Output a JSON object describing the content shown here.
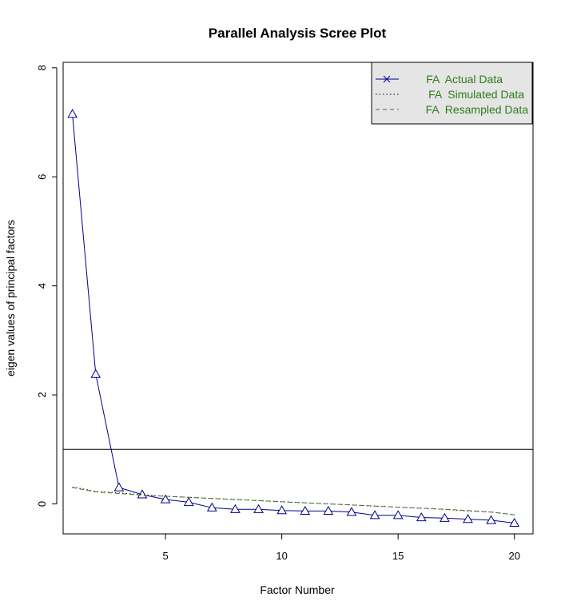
{
  "chart_data": {
    "type": "line",
    "title": "Parallel Analysis Scree Plot",
    "xlabel": "Factor Number",
    "ylabel": "eigen values of principal factors",
    "xlim": [
      0.6,
      20.8
    ],
    "ylim": [
      -0.55,
      8.1
    ],
    "x_ticks": [
      5,
      10,
      15,
      20
    ],
    "y_ticks": [
      0,
      2,
      4,
      6,
      8
    ],
    "reference_line_y": 1,
    "legend_position": "top-right",
    "x": [
      1,
      2,
      3,
      4,
      5,
      6,
      7,
      8,
      9,
      10,
      11,
      12,
      13,
      14,
      15,
      16,
      17,
      18,
      19,
      20
    ],
    "series": [
      {
        "name": "FA  Actual Data",
        "style": "solid",
        "marker": "triangle",
        "color": "#00008b",
        "values": [
          7.15,
          2.38,
          0.3,
          0.17,
          0.08,
          0.03,
          -0.07,
          -0.1,
          -0.1,
          -0.12,
          -0.13,
          -0.13,
          -0.15,
          -0.21,
          -0.21,
          -0.25,
          -0.26,
          -0.28,
          -0.3,
          -0.35
        ]
      },
      {
        "name": "FA  Simulated Data",
        "style": "dotted",
        "marker": "none",
        "color": "#000000",
        "values": [
          0.31,
          0.23,
          0.2,
          0.17,
          0.14,
          0.12,
          0.1,
          0.08,
          0.06,
          0.04,
          0.02,
          0.0,
          -0.02,
          -0.04,
          -0.06,
          -0.08,
          -0.1,
          -0.13,
          -0.15,
          -0.2
        ]
      },
      {
        "name": "FA  Resampled Data",
        "style": "dashed",
        "marker": "none",
        "color": "#556b2f",
        "values": [
          0.3,
          0.22,
          0.19,
          0.16,
          0.14,
          0.12,
          0.1,
          0.08,
          0.06,
          0.04,
          0.02,
          0.0,
          -0.02,
          -0.04,
          -0.06,
          -0.08,
          -0.1,
          -0.12,
          -0.15,
          -0.2
        ]
      }
    ],
    "colors": {
      "legend_text": "#2e7d1a",
      "legend_bg": "#e5e5e5"
    }
  }
}
